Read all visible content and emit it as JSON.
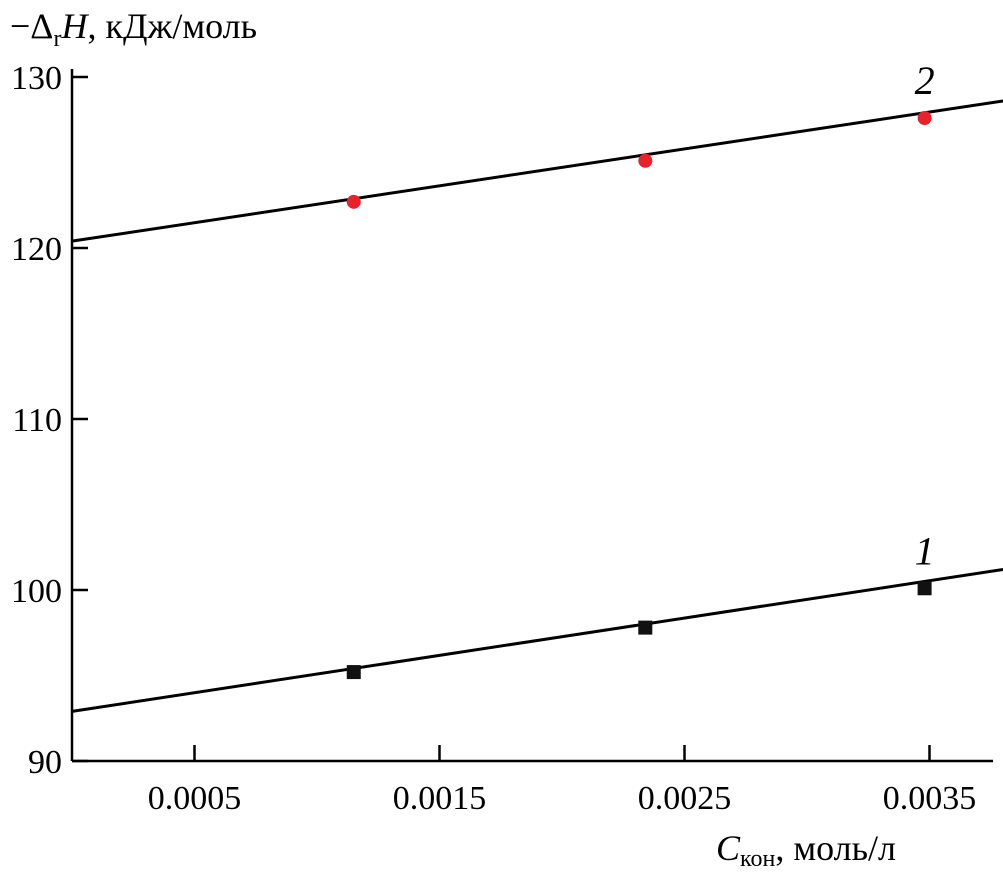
{
  "chart_data": {
    "type": "scatter",
    "ylabel": {
      "prefix": "−Δ",
      "sub": "r",
      "symbol": "H",
      "units": ", кДж/моль"
    },
    "xlabel": {
      "symbol": "C",
      "sub": "кон",
      "units": ", моль/л"
    },
    "xlim": [
      0,
      0.0038
    ],
    "ylim": [
      90,
      130
    ],
    "x_ticks": [
      0.0005,
      0.0015,
      0.0025,
      0.0035
    ],
    "x_tick_labels": [
      "0.0005",
      "0.0015",
      "0.0025",
      "0.0035"
    ],
    "y_ticks": [
      90,
      100,
      110,
      120,
      130
    ],
    "y_tick_labels": [
      "90",
      "100",
      "110",
      "120",
      "130"
    ],
    "grid": false,
    "series": [
      {
        "name": "1",
        "marker": "square",
        "color": "#111111",
        "x": [
          0.00115,
          0.00234,
          0.00348
        ],
        "y": [
          95.2,
          97.8,
          100.1
        ],
        "fit": {
          "x0": 0,
          "y0": 92.9,
          "x1": 0.0038,
          "y1": 101.2
        }
      },
      {
        "name": "2",
        "marker": "circle",
        "color": "#e8212a",
        "x": [
          0.00115,
          0.00234,
          0.00348
        ],
        "y": [
          122.7,
          125.1,
          127.6
        ],
        "fit": {
          "x0": 0,
          "y0": 120.4,
          "x1": 0.0038,
          "y1": 128.6
        }
      }
    ]
  }
}
